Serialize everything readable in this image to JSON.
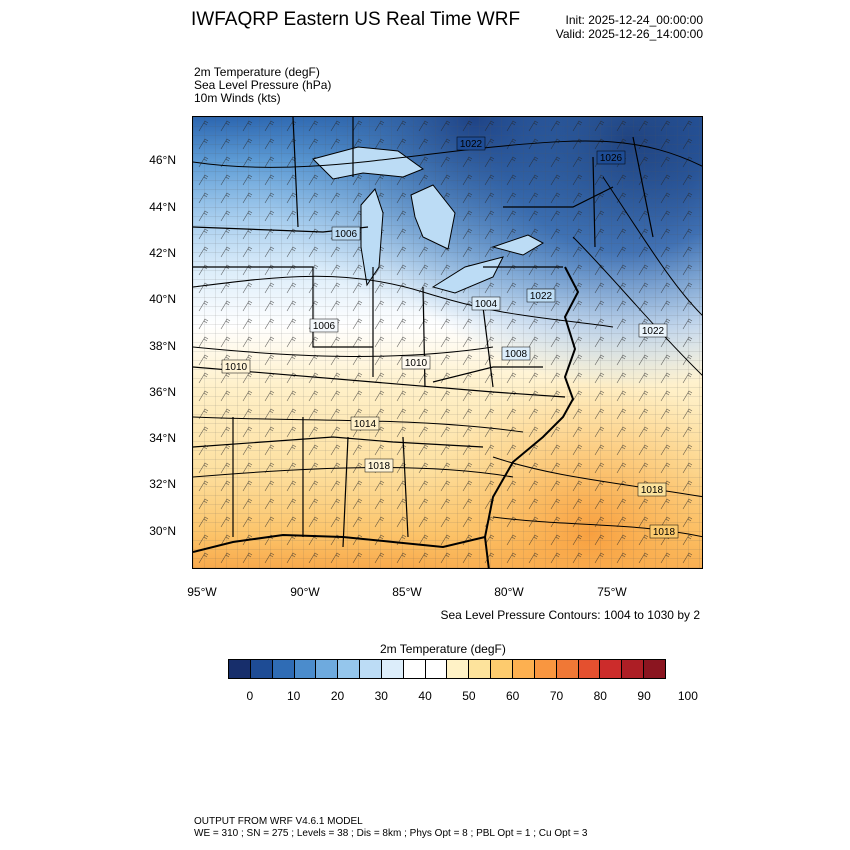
{
  "header": {
    "title": "IWFAQRP Eastern US Real Time WRF",
    "init": "Init: 2025-12-24_00:00:00",
    "valid": "Valid: 2025-12-26_14:00:00"
  },
  "fields": {
    "temp": "2m Temperature   (degF)",
    "slp": "Sea Level Pressure   (hPa)",
    "winds": "10m Winds   (kts)"
  },
  "map": {
    "lat_ticks": [
      "46°N",
      "44°N",
      "42°N",
      "40°N",
      "38°N",
      "36°N",
      "34°N",
      "32°N",
      "30°N"
    ],
    "lon_ticks": [
      "95°W",
      "90°W",
      "85°W",
      "80°W",
      "75°W"
    ],
    "pressure_labels": [
      "1022",
      "1026",
      "1006",
      "1004",
      "1022",
      "1006",
      "1010",
      "1010",
      "1022",
      "1014",
      "1018",
      "1018",
      "1018",
      "1008"
    ],
    "colors": {
      "state_lines": "#000000",
      "county_lines": "#444444"
    }
  },
  "contour_note": "Sea Level Pressure Contours: 1004 to 1030 by 2",
  "colorbar": {
    "title": "2m Temperature  (degF)",
    "labels": [
      "0",
      "10",
      "20",
      "30",
      "40",
      "50",
      "60",
      "70",
      "80",
      "90",
      "100"
    ],
    "colors": [
      "#172e6b",
      "#1e4c95",
      "#2f6cb5",
      "#4b8ccc",
      "#6eaade",
      "#95c6ec",
      "#bcdcf5",
      "#dcedfa",
      "#ffffff",
      "#ffffff",
      "#fff2c6",
      "#fde39c",
      "#fdcb6e",
      "#fdb050",
      "#f99640",
      "#f07836",
      "#e4502f",
      "#cc2c2b",
      "#ad1e25",
      "#8b1520"
    ]
  },
  "footer": {
    "line1": "OUTPUT FROM WRF V4.6.1 MODEL",
    "line2": "WE = 310 ; SN = 275 ; Levels = 38 ; Dis = 8km ; Phys Opt = 8 ; PBL Opt = 1 ; Cu Opt = 3"
  }
}
